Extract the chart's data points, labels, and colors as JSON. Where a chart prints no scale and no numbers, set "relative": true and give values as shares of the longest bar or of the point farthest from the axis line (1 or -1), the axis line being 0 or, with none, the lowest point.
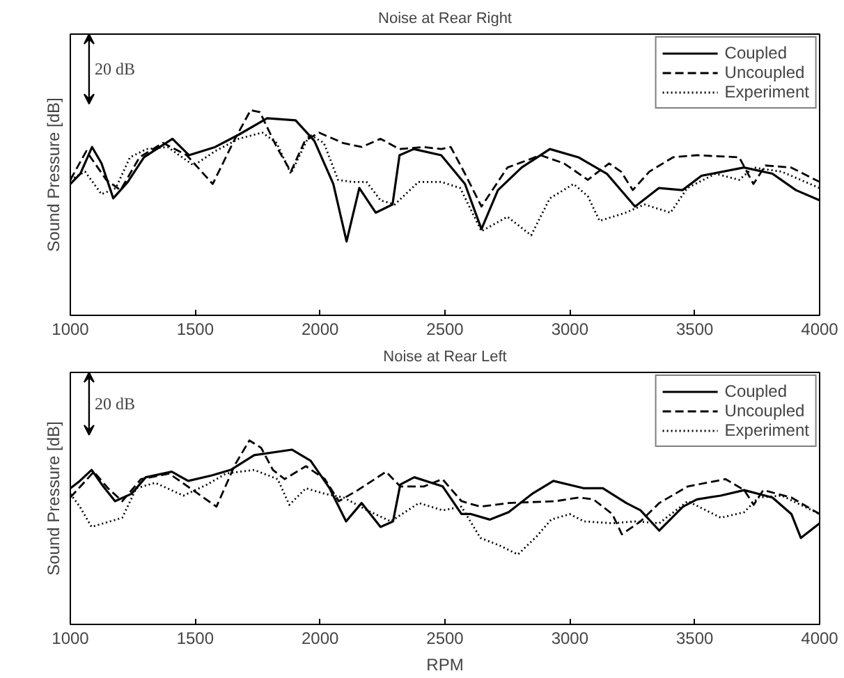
{
  "chart_data": [
    {
      "type": "line",
      "title": "Noise at Rear Right",
      "ylabel": "Sound Pressure [dB]",
      "relative": true,
      "xlim": [
        1000,
        4000
      ],
      "xticks": [
        1000,
        1500,
        2000,
        2500,
        3000,
        3500,
        4000
      ],
      "grid": false,
      "legend": "top right",
      "annotations": [
        "20 dB"
      ],
      "series": [
        {
          "name": "Coupled",
          "color": "#000000",
          "line_style": "solid",
          "x": [
            1000,
            1040,
            1087,
            1125,
            1172,
            1230,
            1295,
            1409,
            1475,
            1580,
            1674,
            1788,
            1902,
            1977,
            2053,
            2106,
            2157,
            2223,
            2290,
            2318,
            2375,
            2485,
            2580,
            2646,
            2712,
            2807,
            2920,
            3034,
            3148,
            3261,
            3356,
            3451,
            3527,
            3697,
            3811,
            3905,
            4000
          ],
          "values": [
            0.64,
            0.69,
            0.82,
            0.74,
            0.57,
            0.65,
            0.77,
            0.86,
            0.78,
            0.82,
            0.88,
            0.96,
            0.95,
            0.85,
            0.64,
            0.36,
            0.62,
            0.5,
            0.54,
            0.78,
            0.81,
            0.78,
            0.64,
            0.42,
            0.61,
            0.72,
            0.81,
            0.77,
            0.69,
            0.53,
            0.62,
            0.61,
            0.68,
            0.72,
            0.69,
            0.61,
            0.56
          ]
        },
        {
          "name": "Uncoupled",
          "color": "#000000",
          "line_style": "dashed",
          "x": [
            1000,
            1064,
            1144,
            1201,
            1277,
            1371,
            1466,
            1570,
            1655,
            1722,
            1759,
            1826,
            1883,
            1939,
            1996,
            2091,
            2167,
            2242,
            2318,
            2413,
            2485,
            2523,
            2580,
            2646,
            2750,
            2883,
            2977,
            3072,
            3157,
            3205,
            3252,
            3318,
            3413,
            3508,
            3678,
            3735,
            3783,
            3886,
            4000
          ],
          "values": [
            0.66,
            0.8,
            0.66,
            0.61,
            0.77,
            0.84,
            0.78,
            0.64,
            0.85,
            1.0,
            0.99,
            0.82,
            0.7,
            0.85,
            0.89,
            0.84,
            0.82,
            0.86,
            0.81,
            0.82,
            0.81,
            0.82,
            0.69,
            0.53,
            0.72,
            0.78,
            0.74,
            0.66,
            0.74,
            0.7,
            0.61,
            0.7,
            0.77,
            0.78,
            0.77,
            0.64,
            0.73,
            0.72,
            0.65
          ]
        },
        {
          "name": "Experiment",
          "color": "#000000",
          "line_style": "dotted",
          "x": [
            1000,
            1059,
            1125,
            1182,
            1239,
            1305,
            1390,
            1494,
            1580,
            1674,
            1769,
            1826,
            1883,
            1958,
            2015,
            2072,
            2129,
            2186,
            2242,
            2299,
            2394,
            2485,
            2561,
            2646,
            2750,
            2845,
            2920,
            3015,
            3072,
            3119,
            3223,
            3299,
            3403,
            3470,
            3583,
            3678,
            3735,
            3848,
            4000
          ],
          "values": [
            0.66,
            0.7,
            0.59,
            0.62,
            0.77,
            0.81,
            0.82,
            0.73,
            0.8,
            0.86,
            0.89,
            0.84,
            0.69,
            0.88,
            0.84,
            0.66,
            0.65,
            0.65,
            0.56,
            0.54,
            0.65,
            0.65,
            0.62,
            0.41,
            0.48,
            0.39,
            0.57,
            0.64,
            0.58,
            0.46,
            0.5,
            0.54,
            0.5,
            0.62,
            0.69,
            0.66,
            0.72,
            0.7,
            0.62
          ]
        }
      ]
    },
    {
      "type": "line",
      "title": "Noise at Rear Left",
      "xlabel": "RPM",
      "ylabel": "Sound Pressure [dB]",
      "relative": true,
      "xlim": [
        1000,
        4000
      ],
      "xticks": [
        1000,
        1500,
        2000,
        2500,
        3000,
        3500,
        4000
      ],
      "grid": false,
      "legend": "top right",
      "annotations": [
        "20 dB"
      ],
      "series": [
        {
          "name": "Coupled",
          "color": "#000000",
          "line_style": "solid",
          "x": [
            1000,
            1038,
            1085,
            1132,
            1179,
            1245,
            1302,
            1406,
            1472,
            1566,
            1642,
            1736,
            1887,
            1962,
            2038,
            2104,
            2166,
            2242,
            2292,
            2321,
            2377,
            2491,
            2566,
            2604,
            2679,
            2755,
            2849,
            2934,
            3057,
            3132,
            3226,
            3283,
            3358,
            3453,
            3509,
            3604,
            3698,
            3811,
            3887,
            3925,
            4000
          ],
          "values": [
            0.74,
            0.78,
            0.84,
            0.75,
            0.67,
            0.71,
            0.8,
            0.83,
            0.78,
            0.81,
            0.84,
            0.92,
            0.95,
            0.89,
            0.74,
            0.56,
            0.66,
            0.53,
            0.56,
            0.76,
            0.8,
            0.75,
            0.6,
            0.6,
            0.57,
            0.61,
            0.71,
            0.78,
            0.74,
            0.74,
            0.66,
            0.62,
            0.51,
            0.64,
            0.68,
            0.7,
            0.73,
            0.69,
            0.6,
            0.47,
            0.55
          ]
        },
        {
          "name": "Uncoupled",
          "color": "#000000",
          "line_style": "dashed",
          "x": [
            1000,
            1047,
            1094,
            1151,
            1208,
            1283,
            1396,
            1491,
            1585,
            1660,
            1717,
            1764,
            1811,
            1858,
            1943,
            2019,
            2075,
            2151,
            2264,
            2321,
            2415,
            2490,
            2566,
            2642,
            2755,
            2943,
            3038,
            3094,
            3170,
            3208,
            3283,
            3358,
            3472,
            3623,
            3698,
            3736,
            3774,
            3887,
            4000
          ],
          "values": [
            0.69,
            0.76,
            0.83,
            0.74,
            0.67,
            0.79,
            0.82,
            0.73,
            0.64,
            0.87,
            1.0,
            0.96,
            0.84,
            0.79,
            0.86,
            0.79,
            0.67,
            0.73,
            0.83,
            0.75,
            0.75,
            0.79,
            0.67,
            0.64,
            0.66,
            0.67,
            0.69,
            0.68,
            0.6,
            0.49,
            0.56,
            0.66,
            0.75,
            0.79,
            0.73,
            0.65,
            0.73,
            0.69,
            0.6
          ]
        },
        {
          "name": "Experiment",
          "color": "#000000",
          "line_style": "dotted",
          "x": [
            1000,
            1038,
            1085,
            1208,
            1264,
            1340,
            1453,
            1547,
            1623,
            1736,
            1830,
            1877,
            1943,
            2019,
            2094,
            2189,
            2283,
            2396,
            2491,
            2566,
            2642,
            2717,
            2792,
            2868,
            2925,
            3000,
            3057,
            3170,
            3264,
            3358,
            3472,
            3604,
            3698,
            3755,
            3849,
            4000
          ],
          "values": [
            0.71,
            0.64,
            0.53,
            0.58,
            0.74,
            0.77,
            0.7,
            0.76,
            0.82,
            0.84,
            0.79,
            0.65,
            0.74,
            0.71,
            0.69,
            0.62,
            0.56,
            0.66,
            0.62,
            0.64,
            0.47,
            0.43,
            0.38,
            0.48,
            0.57,
            0.6,
            0.56,
            0.55,
            0.56,
            0.55,
            0.67,
            0.58,
            0.61,
            0.69,
            0.7,
            0.6
          ]
        }
      ]
    }
  ]
}
